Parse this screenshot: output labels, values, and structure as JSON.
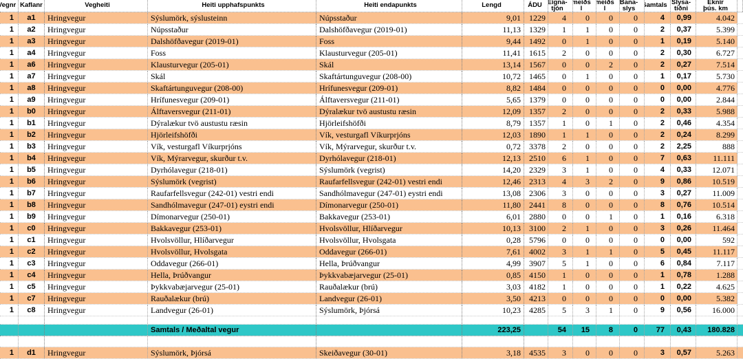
{
  "colors": {
    "row_fill_orange": "#FAC08F",
    "summary_fill_teal": "#2EC7C7",
    "gridline": "#a3a3a3",
    "text": "#000000"
  },
  "table": {
    "columns": [
      {
        "key": "vegnr",
        "label": "Vegnr"
      },
      {
        "key": "kaflanr",
        "label": "Kaflanr"
      },
      {
        "key": "vegheiti",
        "label": "Vegheiti"
      },
      {
        "key": "upphaf",
        "label": "Heiti upphafspunkts"
      },
      {
        "key": "endi",
        "label": "Heiti endapunkts"
      },
      {
        "key": "lengd",
        "label": "Lengd"
      },
      {
        "key": "adu",
        "label": "ÁDU"
      },
      {
        "key": "eignatjon",
        "label": "Eigna-\ntjón"
      },
      {
        "key": "meids1",
        "label": "meiðs\nl"
      },
      {
        "key": "meids2",
        "label": "meiðs\nl"
      },
      {
        "key": "banaslys",
        "label": "Bana-\nslys"
      },
      {
        "key": "samtals",
        "label": "Samtals"
      },
      {
        "key": "slysatidni",
        "label": "Slysa-\ntíðni"
      },
      {
        "key": "eknir",
        "label": "Eknir\nþús. km"
      },
      {
        "key": "filler",
        "label": ""
      }
    ],
    "rows": [
      {
        "vegnr": "1",
        "kaflanr": "a1",
        "vegheiti": "Hringvegur",
        "upphaf": "Sýslumörk, sýslusteinn",
        "endi": "Núpsstaður",
        "lengd": "9,01",
        "adu": "1229",
        "eignatjon": "4",
        "meids1": "0",
        "meids2": "0",
        "banaslys": "0",
        "samtals": "4",
        "slysatidni": "0,99",
        "eknir": "4.042"
      },
      {
        "vegnr": "1",
        "kaflanr": "a2",
        "vegheiti": "Hringvegur",
        "upphaf": "Núpsstaður",
        "endi": "Dalshöfðavegur (2019-01)",
        "lengd": "11,13",
        "adu": "1329",
        "eignatjon": "1",
        "meids1": "1",
        "meids2": "0",
        "banaslys": "0",
        "samtals": "2",
        "slysatidni": "0,37",
        "eknir": "5.399"
      },
      {
        "vegnr": "1",
        "kaflanr": "a3",
        "vegheiti": "Hringvegur",
        "upphaf": "Dalshöfðavegur (2019-01)",
        "endi": "Foss",
        "lengd": "9,44",
        "adu": "1492",
        "eignatjon": "0",
        "meids1": "1",
        "meids2": "0",
        "banaslys": "0",
        "samtals": "1",
        "slysatidni": "0,19",
        "eknir": "5.140"
      },
      {
        "vegnr": "1",
        "kaflanr": "a4",
        "vegheiti": "Hringvegur",
        "upphaf": "Foss",
        "endi": "Klausturvegur (205-01)",
        "lengd": "11,41",
        "adu": "1615",
        "eignatjon": "2",
        "meids1": "0",
        "meids2": "0",
        "banaslys": "0",
        "samtals": "2",
        "slysatidni": "0,30",
        "eknir": "6.727"
      },
      {
        "vegnr": "1",
        "kaflanr": "a6",
        "vegheiti": "Hringvegur",
        "upphaf": "Klausturvegur (205-01)",
        "endi": "Skál",
        "lengd": "13,14",
        "adu": "1567",
        "eignatjon": "0",
        "meids1": "0",
        "meids2": "2",
        "banaslys": "0",
        "samtals": "2",
        "slysatidni": "0,27",
        "eknir": "7.514"
      },
      {
        "vegnr": "1",
        "kaflanr": "a7",
        "vegheiti": "Hringvegur",
        "upphaf": "Skál",
        "endi": "Skaftártunguvegur (208-00)",
        "lengd": "10,72",
        "adu": "1465",
        "eignatjon": "0",
        "meids1": "1",
        "meids2": "0",
        "banaslys": "0",
        "samtals": "1",
        "slysatidni": "0,17",
        "eknir": "5.730"
      },
      {
        "vegnr": "1",
        "kaflanr": "a8",
        "vegheiti": "Hringvegur",
        "upphaf": "Skaftártunguvegur (208-00)",
        "endi": "Hrífunesvegur (209-01)",
        "lengd": "8,82",
        "adu": "1484",
        "eignatjon": "0",
        "meids1": "0",
        "meids2": "0",
        "banaslys": "0",
        "samtals": "0",
        "slysatidni": "0,00",
        "eknir": "4.776"
      },
      {
        "vegnr": "1",
        "kaflanr": "a9",
        "vegheiti": "Hringvegur",
        "upphaf": "Hrífunesvegur (209-01)",
        "endi": "Álftaversvegur (211-01)",
        "lengd": "5,65",
        "adu": "1379",
        "eignatjon": "0",
        "meids1": "0",
        "meids2": "0",
        "banaslys": "0",
        "samtals": "0",
        "slysatidni": "0,00",
        "eknir": "2.844"
      },
      {
        "vegnr": "1",
        "kaflanr": "b0",
        "vegheiti": "Hringvegur",
        "upphaf": "Álftaversvegur (211-01)",
        "endi": "Dýralækur tvö austustu ræsin",
        "lengd": "12,09",
        "adu": "1357",
        "eignatjon": "2",
        "meids1": "0",
        "meids2": "0",
        "banaslys": "0",
        "samtals": "2",
        "slysatidni": "0,33",
        "eknir": "5.988"
      },
      {
        "vegnr": "1",
        "kaflanr": "b1",
        "vegheiti": "Hringvegur",
        "upphaf": "Dýralækur tvö austustu ræsin",
        "endi": "Hjörleifshöfði",
        "lengd": "8,79",
        "adu": "1357",
        "eignatjon": "1",
        "meids1": "0",
        "meids2": "1",
        "banaslys": "0",
        "samtals": "2",
        "slysatidni": "0,46",
        "eknir": "4.354"
      },
      {
        "vegnr": "1",
        "kaflanr": "b2",
        "vegheiti": "Hringvegur",
        "upphaf": "Hjörleifshöfði",
        "endi": "Vík, vesturgafl Víkurprjóns",
        "lengd": "12,03",
        "adu": "1890",
        "eignatjon": "1",
        "meids1": "1",
        "meids2": "0",
        "banaslys": "0",
        "samtals": "2",
        "slysatidni": "0,24",
        "eknir": "8.299"
      },
      {
        "vegnr": "1",
        "kaflanr": "b3",
        "vegheiti": "Hringvegur",
        "upphaf": "Vík, vesturgafl Víkurprjóns",
        "endi": "Vík, Mýrarvegur, skurður t.v.",
        "lengd": "0,72",
        "adu": "3378",
        "eignatjon": "2",
        "meids1": "0",
        "meids2": "0",
        "banaslys": "0",
        "samtals": "2",
        "slysatidni": "2,25",
        "eknir": "888"
      },
      {
        "vegnr": "1",
        "kaflanr": "b4",
        "vegheiti": "Hringvegur",
        "upphaf": "Vík, Mýrarvegur, skurður t.v.",
        "endi": "Dyrhólavegur (218-01)",
        "lengd": "12,13",
        "adu": "2510",
        "eignatjon": "6",
        "meids1": "1",
        "meids2": "0",
        "banaslys": "0",
        "samtals": "7",
        "slysatidni": "0,63",
        "eknir": "11.111"
      },
      {
        "vegnr": "1",
        "kaflanr": "b5",
        "vegheiti": "Hringvegur",
        "upphaf": "Dyrhólavegur (218-01)",
        "endi": "Sýslumörk (vegrist)",
        "lengd": "14,20",
        "adu": "2329",
        "eignatjon": "3",
        "meids1": "1",
        "meids2": "0",
        "banaslys": "0",
        "samtals": "4",
        "slysatidni": "0,33",
        "eknir": "12.071"
      },
      {
        "vegnr": "1",
        "kaflanr": "b6",
        "vegheiti": "Hringvegur",
        "upphaf": "Sýslumörk (vegrist)",
        "endi": "Raufarfellsvegur (242-01) vestri endi",
        "lengd": "12,46",
        "adu": "2313",
        "eignatjon": "4",
        "meids1": "3",
        "meids2": "2",
        "banaslys": "0",
        "samtals": "9",
        "slysatidni": "0,86",
        "eknir": "10.519"
      },
      {
        "vegnr": "1",
        "kaflanr": "b7",
        "vegheiti": "Hringvegur",
        "upphaf": "Raufarfellsvegur (242-01) vestri endi",
        "endi": "Sandhólmavegur (247-01) eystri endi",
        "lengd": "13,08",
        "adu": "2306",
        "eignatjon": "3",
        "meids1": "0",
        "meids2": "0",
        "banaslys": "0",
        "samtals": "3",
        "slysatidni": "0,27",
        "eknir": "11.009"
      },
      {
        "vegnr": "1",
        "kaflanr": "b8",
        "vegheiti": "Hringvegur",
        "upphaf": "Sandhólmavegur (247-01) eystri endi",
        "endi": "Dímonarvegur (250-01)",
        "lengd": "11,80",
        "adu": "2441",
        "eignatjon": "8",
        "meids1": "0",
        "meids2": "0",
        "banaslys": "0",
        "samtals": "8",
        "slysatidni": "0,76",
        "eknir": "10.514"
      },
      {
        "vegnr": "1",
        "kaflanr": "b9",
        "vegheiti": "Hringvegur",
        "upphaf": "Dímonarvegur (250-01)",
        "endi": "Bakkavegur (253-01)",
        "lengd": "6,01",
        "adu": "2880",
        "eignatjon": "0",
        "meids1": "0",
        "meids2": "1",
        "banaslys": "0",
        "samtals": "1",
        "slysatidni": "0,16",
        "eknir": "6.318"
      },
      {
        "vegnr": "1",
        "kaflanr": "c0",
        "vegheiti": "Hringvegur",
        "upphaf": "Bakkavegur (253-01)",
        "endi": "Hvolsvöllur, Hlíðarvegur",
        "lengd": "10,13",
        "adu": "3100",
        "eignatjon": "2",
        "meids1": "1",
        "meids2": "0",
        "banaslys": "0",
        "samtals": "3",
        "slysatidni": "0,26",
        "eknir": "11.464"
      },
      {
        "vegnr": "1",
        "kaflanr": "c1",
        "vegheiti": "Hringvegur",
        "upphaf": "Hvolsvöllur, Hlíðarvegur",
        "endi": "Hvolsvöllur, Hvolsgata",
        "lengd": "0,28",
        "adu": "5796",
        "eignatjon": "0",
        "meids1": "0",
        "meids2": "0",
        "banaslys": "0",
        "samtals": "0",
        "slysatidni": "0,00",
        "eknir": "592"
      },
      {
        "vegnr": "1",
        "kaflanr": "c2",
        "vegheiti": "Hringvegur",
        "upphaf": "Hvolsvöllur, Hvolsgata",
        "endi": "Oddavegur (266-01)",
        "lengd": "7,61",
        "adu": "4002",
        "eignatjon": "3",
        "meids1": "1",
        "meids2": "1",
        "banaslys": "0",
        "samtals": "5",
        "slysatidni": "0,45",
        "eknir": "11.117"
      },
      {
        "vegnr": "1",
        "kaflanr": "c3",
        "vegheiti": "Hringvegur",
        "upphaf": "Oddavegur (266-01)",
        "endi": "Hella, Þrúðvangur",
        "lengd": "4,99",
        "adu": "3907",
        "eignatjon": "5",
        "meids1": "1",
        "meids2": "0",
        "banaslys": "0",
        "samtals": "6",
        "slysatidni": "0,84",
        "eknir": "7.117"
      },
      {
        "vegnr": "1",
        "kaflanr": "c4",
        "vegheiti": "Hringvegur",
        "upphaf": "Hella, Þrúðvangur",
        "endi": "Þykkvabæjarvegur (25-01)",
        "lengd": "0,85",
        "adu": "4150",
        "eignatjon": "1",
        "meids1": "0",
        "meids2": "0",
        "banaslys": "0",
        "samtals": "1",
        "slysatidni": "0,78",
        "eknir": "1.288"
      },
      {
        "vegnr": "1",
        "kaflanr": "c5",
        "vegheiti": "Hringvegur",
        "upphaf": "Þykkvabæjarvegur (25-01)",
        "endi": "Rauðalækur (brú)",
        "lengd": "3,03",
        "adu": "4182",
        "eignatjon": "1",
        "meids1": "0",
        "meids2": "0",
        "banaslys": "0",
        "samtals": "1",
        "slysatidni": "0,22",
        "eknir": "4.625"
      },
      {
        "vegnr": "1",
        "kaflanr": "c7",
        "vegheiti": "Hringvegur",
        "upphaf": "Rauðalækur (brú)",
        "endi": "Landvegur (26-01)",
        "lengd": "3,50",
        "adu": "4213",
        "eignatjon": "0",
        "meids1": "0",
        "meids2": "0",
        "banaslys": "0",
        "samtals": "0",
        "slysatidni": "0,00",
        "eknir": "5.382"
      },
      {
        "vegnr": "1",
        "kaflanr": "c8",
        "vegheiti": "Hringvegur",
        "upphaf": "Landvegur (26-01)",
        "endi": "Sýslumörk, Þjórsá",
        "lengd": "10,23",
        "adu": "4285",
        "eignatjon": "5",
        "meids1": "3",
        "meids2": "1",
        "banaslys": "0",
        "samtals": "9",
        "slysatidni": "0,56",
        "eknir": "16.000"
      }
    ],
    "summary_row": {
      "vegnr": "",
      "kaflanr": "",
      "vegheiti": "",
      "upphaf": "Samtals / Meðaltal vegur",
      "endi": "",
      "lengd": "223,25",
      "adu": "",
      "eignatjon": "54",
      "meids1": "15",
      "meids2": "8",
      "banaslys": "0",
      "samtals": "77",
      "slysatidni": "0,43",
      "eknir": "180.828"
    },
    "extra_rows": [
      {
        "vegnr": "1",
        "kaflanr": "d1",
        "vegheiti": "Hringvegur",
        "upphaf": "Sýslumörk, Þjórsá",
        "endi": "Skeiðavegur (30-01)",
        "lengd": "3,18",
        "adu": "4535",
        "eignatjon": "3",
        "meids1": "0",
        "meids2": "0",
        "banaslys": "0",
        "samtals": "3",
        "slysatidni": "0,57",
        "eknir": "5.263"
      }
    ]
  }
}
